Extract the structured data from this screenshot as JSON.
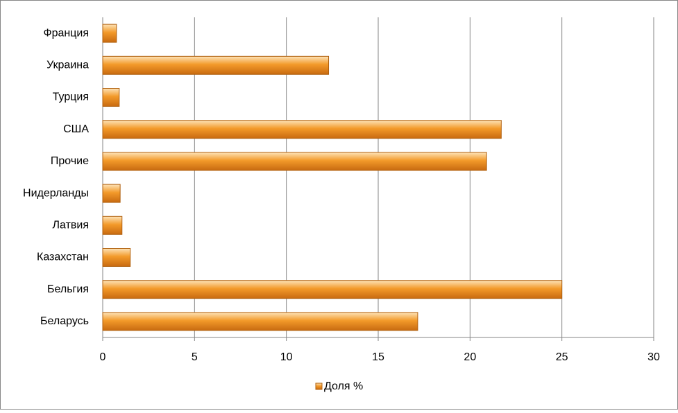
{
  "chart_data": {
    "type": "hbar",
    "categories": [
      "Франция",
      "Украина",
      "Турция",
      "США",
      "Прочие",
      "Нидерланды",
      "Латвия",
      "Казахстан",
      "Бельгия",
      "Беларусь"
    ],
    "series": [
      {
        "name": "Доля %",
        "color": "#f39a2a",
        "values": [
          0.75,
          12.3,
          0.9,
          21.7,
          20.9,
          0.95,
          1.05,
          1.5,
          25.0,
          17.15
        ]
      }
    ],
    "xlim": [
      0,
      30
    ],
    "xticks": [
      0,
      5,
      10,
      15,
      20,
      25,
      30
    ],
    "grid": true,
    "legend": "bottom"
  }
}
